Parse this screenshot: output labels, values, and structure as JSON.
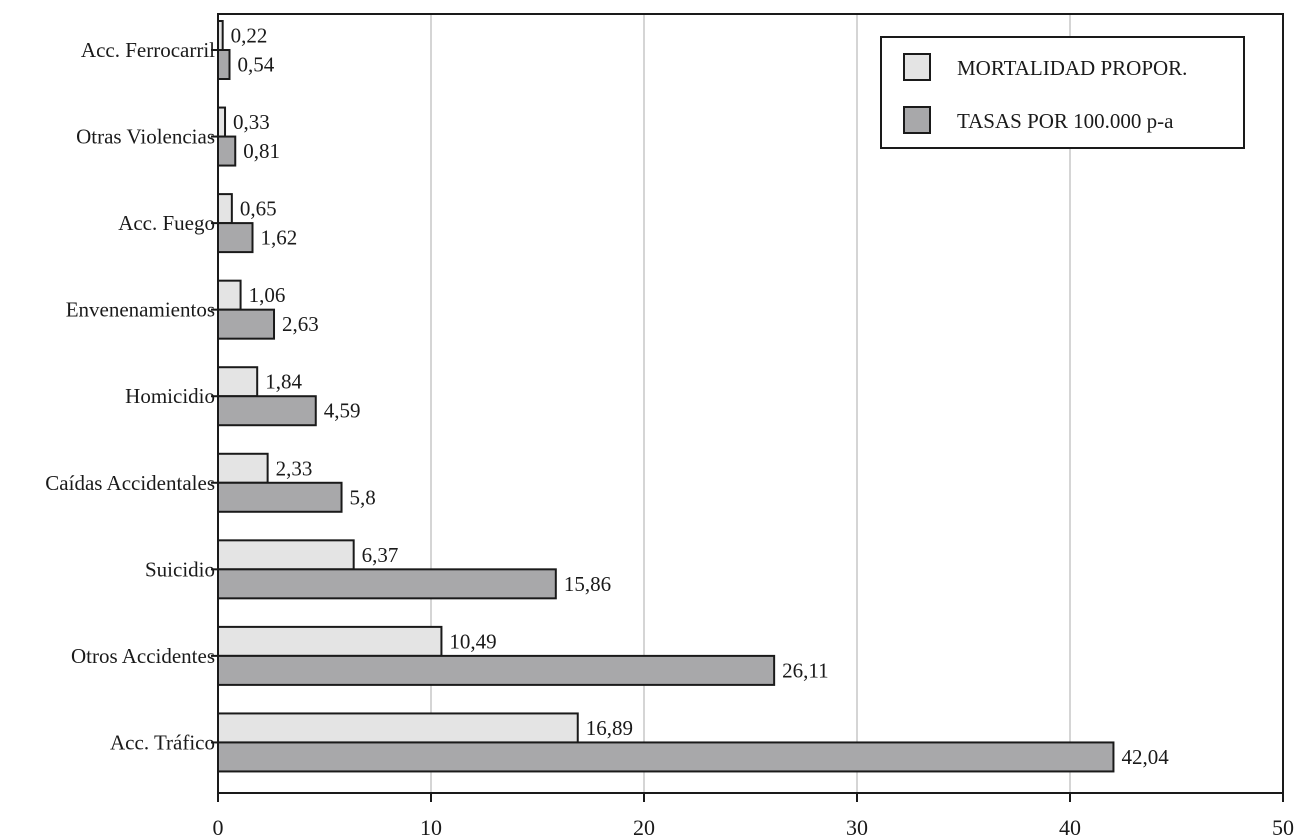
{
  "chart_data": {
    "type": "bar",
    "orientation": "horizontal",
    "categories": [
      "Acc. Ferrocarril",
      "Otras Violencias",
      "Acc. Fuego",
      "Envenenamientos",
      "Homicidio",
      "Caídas Accidentales",
      "Suicidio",
      "Otros Accidentes",
      "Acc. Tráfico"
    ],
    "series": [
      {
        "name": "MORTALIDAD PROPOR.",
        "color": "#e4e4e4",
        "values": [
          0.22,
          0.33,
          0.65,
          1.06,
          1.84,
          2.33,
          6.37,
          10.49,
          16.89
        ],
        "labels": [
          "0,22",
          "0,33",
          "0,65",
          "1,06",
          "1,84",
          "2,33",
          "6,37",
          "10,49",
          "16,89"
        ]
      },
      {
        "name": "TASAS POR 100.000 p-a",
        "color": "#a8a8aa",
        "values": [
          0.54,
          0.81,
          1.62,
          2.63,
          4.59,
          5.8,
          15.86,
          26.11,
          42.04
        ],
        "labels": [
          "0,54",
          "0,81",
          "1,62",
          "2,63",
          "4,59",
          "5,8",
          "15,86",
          "26,11",
          "42,04"
        ]
      }
    ],
    "xlim": [
      0,
      50
    ],
    "xticks": [
      0,
      10,
      20,
      30,
      40,
      50
    ],
    "xtick_labels": [
      "0",
      "10",
      "20",
      "30",
      "40",
      "50"
    ],
    "grid": "vertical",
    "legend_position": "top-right",
    "title": "",
    "xlabel": "",
    "ylabel": ""
  }
}
